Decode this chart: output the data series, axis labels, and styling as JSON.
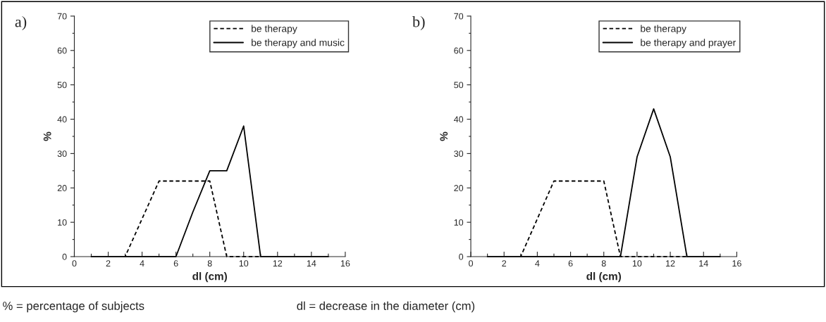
{
  "chart_data": [
    {
      "type": "line",
      "title": "a)",
      "xlabel": "dl (cm)",
      "ylabel": "%",
      "xlim": [
        0,
        16
      ],
      "ylim": [
        0,
        70
      ],
      "xticks": [
        0,
        {
          "value": 1,
          "label": null
        },
        2,
        {
          "value": 3,
          "label": null
        },
        4,
        {
          "value": 5,
          "label": null
        },
        6,
        {
          "value": 7,
          "label": null
        },
        8,
        {
          "value": 9,
          "label": null
        },
        10,
        {
          "value": 11,
          "label": null
        },
        12,
        {
          "value": 13,
          "label": null
        },
        14,
        {
          "value": 15,
          "label": null
        },
        16
      ],
      "yticks": [
        0,
        {
          "value": 5,
          "label": null
        },
        10,
        {
          "value": 15,
          "label": null
        },
        20,
        {
          "value": 25,
          "label": null
        },
        30,
        {
          "value": 35,
          "label": null
        },
        40,
        {
          "value": 45,
          "label": null
        },
        50,
        {
          "value": 55,
          "label": null
        },
        60,
        {
          "value": 65,
          "label": null
        },
        70
      ],
      "x": [
        1,
        2,
        3,
        4,
        5,
        6,
        7,
        8,
        9,
        10,
        11,
        12,
        13,
        14,
        15
      ],
      "series": [
        {
          "name": "be therapy",
          "color": "#000000",
          "line_style": "dashed",
          "values": [
            0,
            0,
            0,
            11,
            22,
            22,
            22,
            22,
            0,
            0,
            0,
            0,
            0,
            0,
            0
          ]
        },
        {
          "name": "be therapy and music",
          "color": "#000000",
          "line_style": "solid",
          "values": [
            0,
            0,
            0,
            0,
            0,
            0,
            13,
            25,
            25,
            38,
            0,
            0,
            0,
            0,
            0
          ]
        }
      ],
      "legend": "top right",
      "grid": false,
      "marker": "none",
      "annotations": [
        "% = percentage of subjects",
        "dl = decrease in the diameter (cm)"
      ]
    },
    {
      "type": "line",
      "title": "b)",
      "xlabel": "dl (cm)",
      "ylabel": "%",
      "xlim": [
        0,
        16
      ],
      "ylim": [
        0,
        70
      ],
      "xticks": [
        0,
        {
          "value": 1,
          "label": null
        },
        2,
        {
          "value": 3,
          "label": null
        },
        4,
        {
          "value": 5,
          "label": null
        },
        6,
        {
          "value": 7,
          "label": null
        },
        8,
        {
          "value": 9,
          "label": null
        },
        10,
        {
          "value": 11,
          "label": null
        },
        12,
        {
          "value": 13,
          "label": null
        },
        14,
        {
          "value": 15,
          "label": null
        },
        16
      ],
      "yticks": [
        0,
        {
          "value": 5,
          "label": null
        },
        10,
        {
          "value": 15,
          "label": null
        },
        20,
        {
          "value": 25,
          "label": null
        },
        30,
        {
          "value": 35,
          "label": null
        },
        40,
        {
          "value": 45,
          "label": null
        },
        50,
        {
          "value": 55,
          "label": null
        },
        60,
        {
          "value": 65,
          "label": null
        },
        70
      ],
      "x": [
        1,
        2,
        3,
        4,
        5,
        6,
        7,
        8,
        9,
        10,
        11,
        12,
        13,
        14,
        15
      ],
      "series": [
        {
          "name": "be therapy",
          "color": "#000000",
          "line_style": "dashed",
          "values": [
            0,
            0,
            0,
            11,
            22,
            22,
            22,
            22,
            0,
            0,
            0,
            0,
            0,
            0,
            0
          ]
        },
        {
          "name": "be therapy and prayer",
          "color": "#000000",
          "line_style": "solid",
          "values": [
            0,
            0,
            0,
            0,
            0,
            0,
            0,
            0,
            0,
            29,
            43,
            29,
            0,
            0,
            0
          ]
        }
      ],
      "legend": "top right",
      "grid": false,
      "marker": "none"
    }
  ]
}
